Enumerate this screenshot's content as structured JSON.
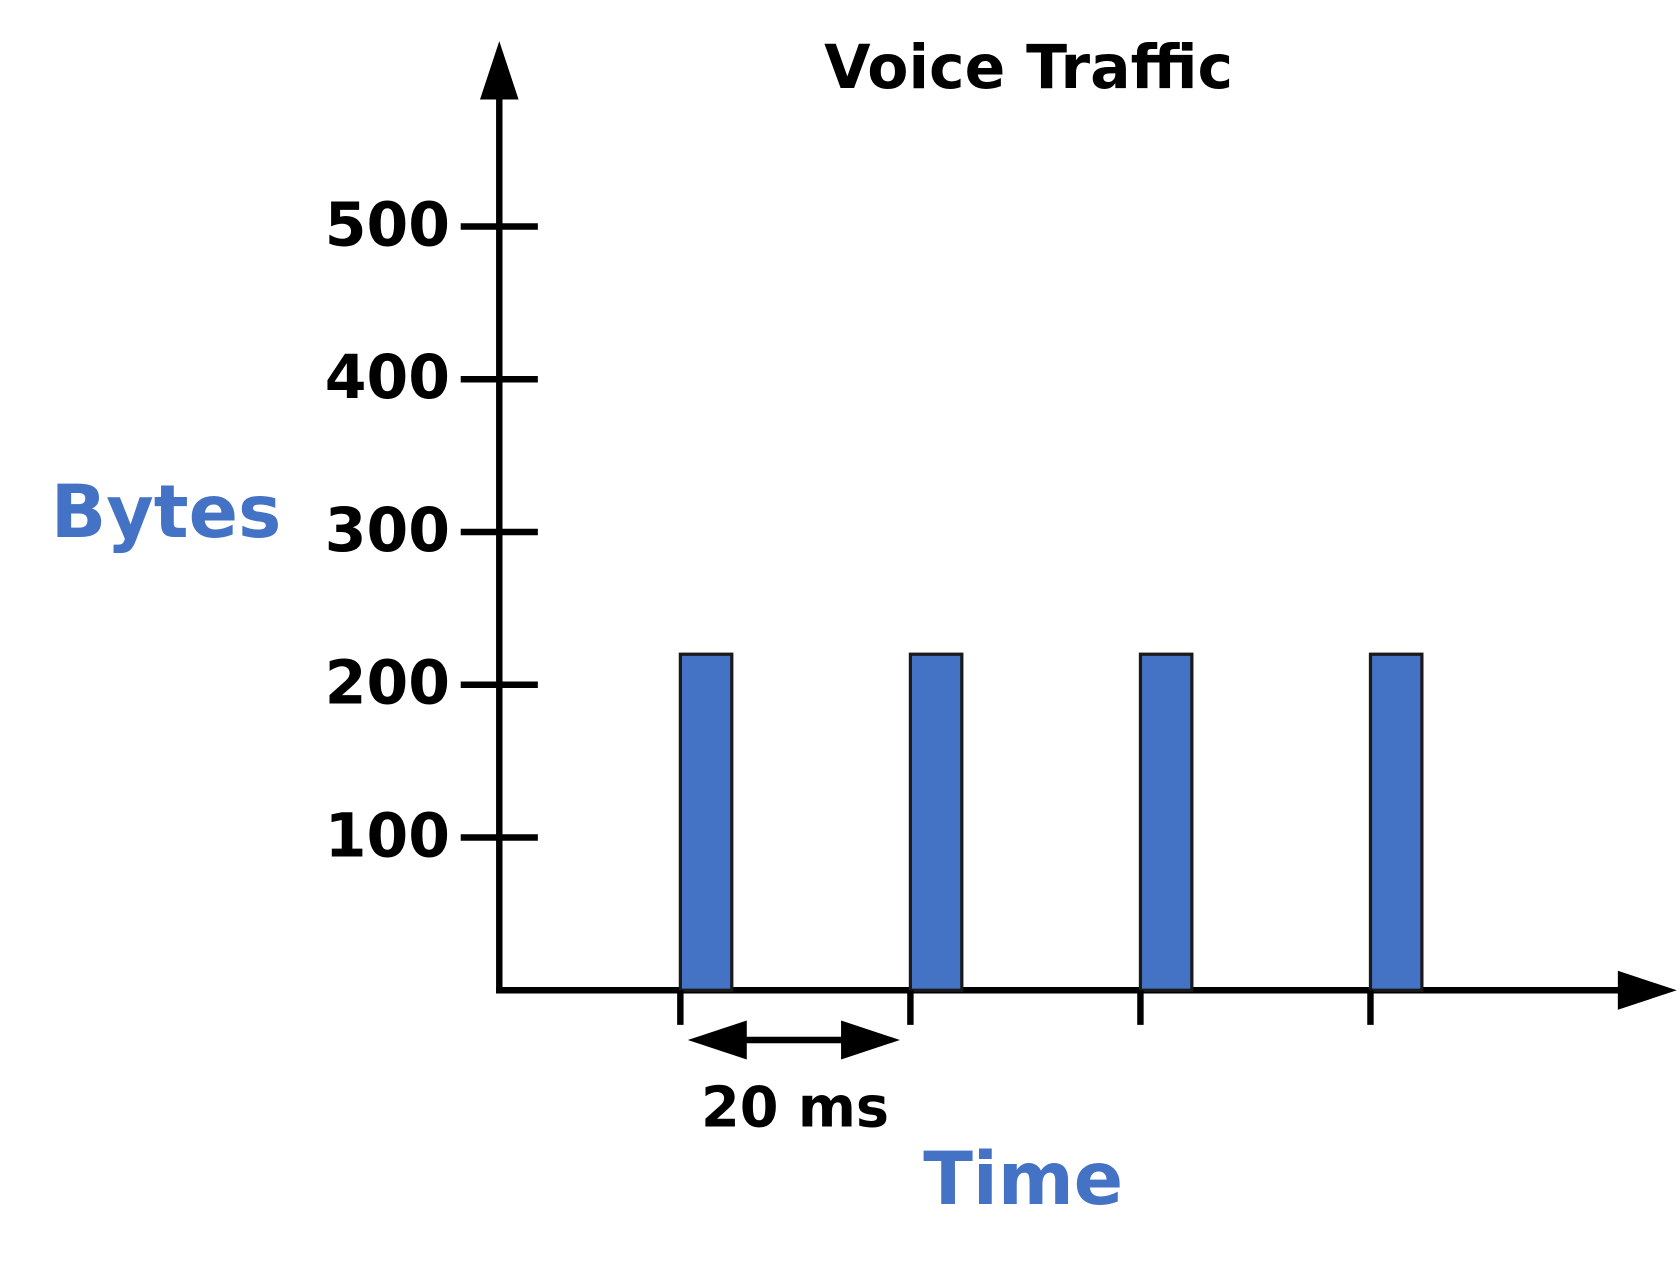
{
  "chart_data": {
    "type": "bar",
    "title": "Voice Traffic",
    "y_label": "Bytes",
    "x_label": "Time",
    "annotation": "20 ms",
    "categories": [
      null,
      null,
      null,
      null
    ],
    "values": [
      220,
      220,
      220,
      220
    ],
    "color": "#4472c4",
    "label_color": "#4472c4",
    "ylim": [
      0,
      620
    ],
    "yticks": [
      100,
      200,
      300,
      400,
      500
    ],
    "grid": false
  }
}
